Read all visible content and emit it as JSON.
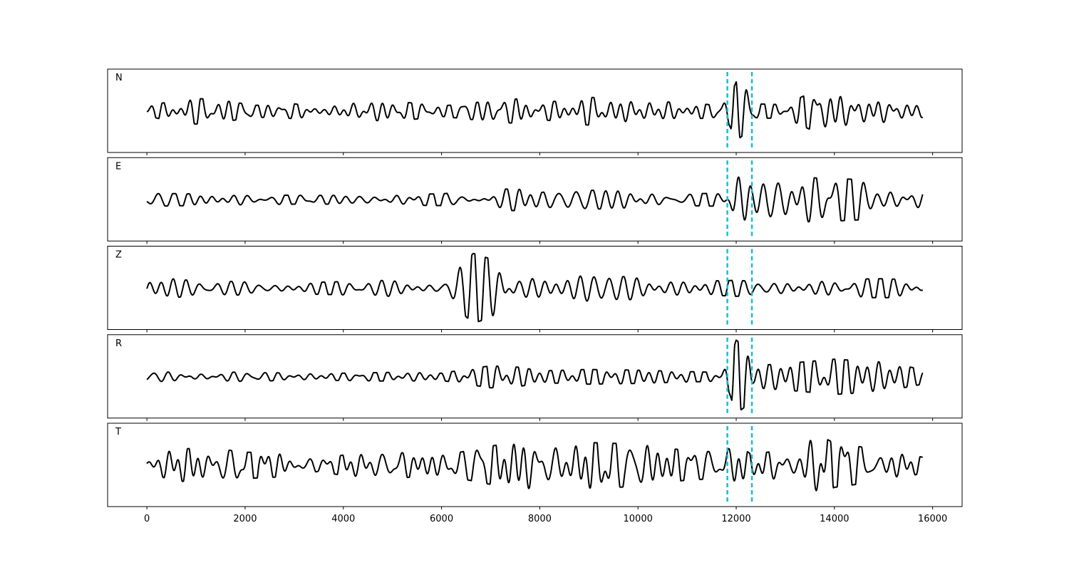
{
  "chart_data": {
    "type": "line",
    "title": "",
    "xlabel": "",
    "ylabel": "",
    "xlim": [
      -800,
      16600
    ],
    "x_ticks": [
      0,
      2000,
      4000,
      6000,
      8000,
      10000,
      12000,
      14000,
      16000
    ],
    "x_tick_labels": [
      "0",
      "2000",
      "4000",
      "6000",
      "8000",
      "10000",
      "12000",
      "14000",
      "16000"
    ],
    "marker_lines": {
      "x": [
        11820,
        12320
      ],
      "color": "#17becf",
      "style": "dashed"
    },
    "trace_color": "#000000",
    "sample_range": [
      0,
      15800
    ],
    "series": [
      {
        "name": "N",
        "envelope": [
          [
            0,
            0.12
          ],
          [
            300,
            0.22
          ],
          [
            1000,
            0.35
          ],
          [
            1500,
            0.3
          ],
          [
            2200,
            0.16
          ],
          [
            3000,
            0.2
          ],
          [
            3600,
            0.1
          ],
          [
            4000,
            0.2
          ],
          [
            5000,
            0.28
          ],
          [
            6000,
            0.14
          ],
          [
            7000,
            0.28
          ],
          [
            7600,
            0.34
          ],
          [
            8000,
            0.22
          ],
          [
            9000,
            0.38
          ],
          [
            10000,
            0.3
          ],
          [
            11000,
            0.22
          ],
          [
            11700,
            0.16
          ],
          [
            11850,
            0.35
          ],
          [
            12000,
            0.8
          ],
          [
            12200,
            0.6
          ],
          [
            12350,
            0.2
          ],
          [
            13000,
            0.18
          ],
          [
            13700,
            0.62
          ],
          [
            14000,
            0.45
          ],
          [
            15000,
            0.3
          ],
          [
            15800,
            0.18
          ]
        ]
      },
      {
        "name": "E",
        "envelope": [
          [
            0,
            0.18
          ],
          [
            800,
            0.16
          ],
          [
            2000,
            0.14
          ],
          [
            3000,
            0.12
          ],
          [
            4000,
            0.12
          ],
          [
            5000,
            0.14
          ],
          [
            6000,
            0.16
          ],
          [
            7000,
            0.28
          ],
          [
            7600,
            0.3
          ],
          [
            8000,
            0.2
          ],
          [
            9000,
            0.26
          ],
          [
            10000,
            0.22
          ],
          [
            11000,
            0.16
          ],
          [
            11700,
            0.18
          ],
          [
            11850,
            0.35
          ],
          [
            12000,
            0.92
          ],
          [
            12200,
            0.8
          ],
          [
            12350,
            0.45
          ],
          [
            13000,
            0.62
          ],
          [
            14000,
            0.58
          ],
          [
            14500,
            0.55
          ],
          [
            15000,
            0.4
          ],
          [
            15800,
            0.22
          ]
        ]
      },
      {
        "name": "Z",
        "envelope": [
          [
            0,
            0.22
          ],
          [
            500,
            0.26
          ],
          [
            1000,
            0.2
          ],
          [
            2000,
            0.18
          ],
          [
            3000,
            0.15
          ],
          [
            4000,
            0.18
          ],
          [
            5000,
            0.22
          ],
          [
            6000,
            0.2
          ],
          [
            6650,
            0.95
          ],
          [
            7000,
            0.8
          ],
          [
            7300,
            0.65
          ],
          [
            7600,
            0.3
          ],
          [
            8500,
            0.28
          ],
          [
            9000,
            0.36
          ],
          [
            10000,
            0.3
          ],
          [
            11000,
            0.24
          ],
          [
            11700,
            0.2
          ],
          [
            12000,
            0.22
          ],
          [
            12400,
            0.18
          ],
          [
            13000,
            0.26
          ],
          [
            14000,
            0.24
          ],
          [
            15000,
            0.26
          ],
          [
            15800,
            0.22
          ]
        ]
      },
      {
        "name": "R",
        "envelope": [
          [
            0,
            0.16
          ],
          [
            1000,
            0.14
          ],
          [
            2000,
            0.12
          ],
          [
            3000,
            0.1
          ],
          [
            4000,
            0.1
          ],
          [
            5000,
            0.12
          ],
          [
            6000,
            0.1
          ],
          [
            7000,
            0.3
          ],
          [
            7600,
            0.26
          ],
          [
            8000,
            0.16
          ],
          [
            9000,
            0.2
          ],
          [
            10000,
            0.18
          ],
          [
            11000,
            0.14
          ],
          [
            11700,
            0.12
          ],
          [
            11850,
            0.4
          ],
          [
            12000,
            1.0
          ],
          [
            12150,
            0.85
          ],
          [
            12350,
            0.3
          ],
          [
            13000,
            0.36
          ],
          [
            14000,
            0.48
          ],
          [
            15000,
            0.4
          ],
          [
            15800,
            0.2
          ]
        ]
      },
      {
        "name": "T",
        "envelope": [
          [
            0,
            0.2
          ],
          [
            500,
            0.4
          ],
          [
            1000,
            0.48
          ],
          [
            1500,
            0.44
          ],
          [
            2000,
            0.36
          ],
          [
            3000,
            0.3
          ],
          [
            3500,
            0.16
          ],
          [
            4000,
            0.28
          ],
          [
            5000,
            0.36
          ],
          [
            6000,
            0.26
          ],
          [
            7000,
            0.52
          ],
          [
            7800,
            0.72
          ],
          [
            8500,
            0.48
          ],
          [
            9000,
            0.62
          ],
          [
            10000,
            0.58
          ],
          [
            11000,
            0.4
          ],
          [
            11700,
            0.36
          ],
          [
            12000,
            0.62
          ],
          [
            12300,
            0.3
          ],
          [
            13000,
            0.42
          ],
          [
            13700,
            0.82
          ],
          [
            14000,
            0.6
          ],
          [
            15000,
            0.42
          ],
          [
            15800,
            0.22
          ]
        ]
      }
    ]
  }
}
